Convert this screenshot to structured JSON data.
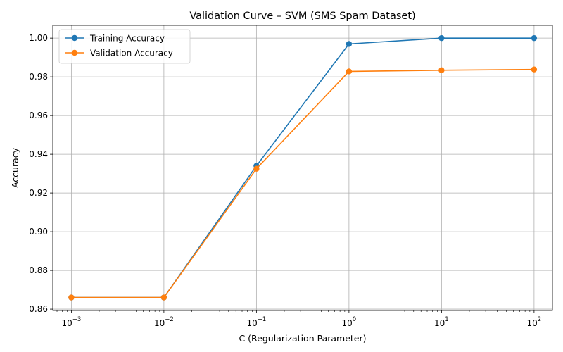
{
  "chart_data": {
    "type": "line",
    "title": "Validation Curve – SVM (SMS Spam Dataset)",
    "xlabel": "C (Regularization Parameter)",
    "ylabel": "Accuracy",
    "xscale": "log",
    "x": [
      0.001,
      0.01,
      0.1,
      1,
      10,
      100
    ],
    "x_tick_labels": [
      {
        "base": "10",
        "exp": "−3"
      },
      {
        "base": "10",
        "exp": "−2"
      },
      {
        "base": "10",
        "exp": "−1"
      },
      {
        "base": "10",
        "exp": "0"
      },
      {
        "base": "10",
        "exp": "1"
      },
      {
        "base": "10",
        "exp": "2"
      }
    ],
    "y_ticks": [
      0.86,
      0.88,
      0.9,
      0.92,
      0.94,
      0.96,
      0.98,
      1.0
    ],
    "y_tick_labels": [
      "0.86",
      "0.88",
      "0.90",
      "0.92",
      "0.94",
      "0.96",
      "0.98",
      "1.00"
    ],
    "xlim": [
      0.00063,
      158
    ],
    "ylim": [
      0.8593,
      1.0066
    ],
    "grid": true,
    "legend_position": "top-left",
    "series": [
      {
        "name": "Training Accuracy",
        "color": "#1f77b4",
        "marker": "circle",
        "values": [
          0.866,
          0.866,
          0.934,
          0.997,
          1.0,
          1.0
        ]
      },
      {
        "name": "Validation Accuracy",
        "color": "#ff7f0e",
        "marker": "circle",
        "values": [
          0.866,
          0.866,
          0.9325,
          0.9828,
          0.9834,
          0.9838
        ]
      }
    ]
  }
}
